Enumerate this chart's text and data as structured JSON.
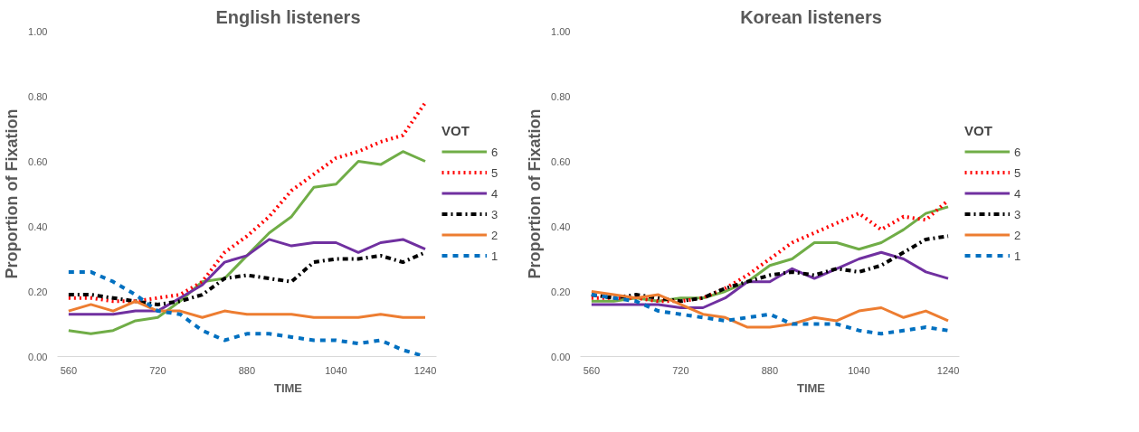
{
  "chart_data": [
    {
      "type": "line",
      "title": "English listeners",
      "xlabel": "TIME",
      "ylabel": "Proportion of Fixation",
      "legend_title": "VOT",
      "legend": "right",
      "grid": false,
      "categories": [
        "560",
        null,
        null,
        null,
        "720",
        null,
        null,
        null,
        "880",
        null,
        null,
        null,
        "1040",
        null,
        null,
        null,
        "1240"
      ],
      "ylim": [
        0,
        1
      ],
      "yticks": [
        {
          "value": 0,
          "label": "0.00"
        },
        {
          "value": 0.2,
          "label": "0.20"
        },
        {
          "value": 0.4,
          "label": "0.40"
        },
        {
          "value": 0.6,
          "label": "0.60"
        },
        {
          "value": 0.8,
          "label": "0.80"
        },
        {
          "value": 1,
          "label": "1.00"
        }
      ],
      "series": [
        {
          "name": "6",
          "color": "#70ad47",
          "line_style": "solid",
          "values": [
            0.08,
            0.07,
            0.08,
            0.11,
            0.12,
            0.17,
            0.23,
            0.24,
            0.31,
            0.38,
            0.43,
            0.52,
            0.53,
            0.6,
            0.59,
            0.63,
            0.6
          ]
        },
        {
          "name": "5",
          "color": "#ff0000",
          "line_style": "dotted",
          "values": [
            0.18,
            0.18,
            0.17,
            0.17,
            0.18,
            0.19,
            0.23,
            0.32,
            0.37,
            0.43,
            0.51,
            0.56,
            0.61,
            0.63,
            0.66,
            0.68,
            0.78
          ]
        },
        {
          "name": "4",
          "color": "#7030a0",
          "line_style": "solid",
          "values": [
            0.13,
            0.13,
            0.13,
            0.14,
            0.14,
            0.18,
            0.22,
            0.29,
            0.31,
            0.36,
            0.34,
            0.35,
            0.35,
            0.32,
            0.35,
            0.36,
            0.33
          ]
        },
        {
          "name": "3",
          "color": "#000000",
          "line_style": "dashdot",
          "values": [
            0.19,
            0.19,
            0.18,
            0.17,
            0.16,
            0.17,
            0.19,
            0.24,
            0.25,
            0.24,
            0.23,
            0.29,
            0.3,
            0.3,
            0.31,
            0.29,
            0.32
          ]
        },
        {
          "name": "2",
          "color": "#ed7d31",
          "line_style": "solid",
          "values": [
            0.14,
            0.16,
            0.14,
            0.17,
            0.14,
            0.14,
            0.12,
            0.14,
            0.13,
            0.13,
            0.13,
            0.12,
            0.12,
            0.12,
            0.13,
            0.12,
            0.12
          ]
        },
        {
          "name": "1",
          "color": "#0070c0",
          "line_style": "dashed",
          "values": [
            0.26,
            0.26,
            0.23,
            0.19,
            0.14,
            0.13,
            0.08,
            0.05,
            0.07,
            0.07,
            0.06,
            0.05,
            0.05,
            0.04,
            0.05,
            0.02,
            0.0
          ]
        }
      ]
    },
    {
      "type": "line",
      "title": "Korean listeners",
      "xlabel": "TIME",
      "ylabel": "Proportion of Fixation",
      "legend_title": "VOT",
      "legend": "right",
      "grid": false,
      "categories": [
        "560",
        null,
        null,
        null,
        "720",
        null,
        null,
        null,
        "880",
        null,
        null,
        null,
        "1040",
        null,
        null,
        null,
        "1240"
      ],
      "ylim": [
        0,
        1
      ],
      "yticks": [
        {
          "value": 0,
          "label": "0.00"
        },
        {
          "value": 0.2,
          "label": "0.20"
        },
        {
          "value": 0.4,
          "label": "0.40"
        },
        {
          "value": 0.6,
          "label": "0.60"
        },
        {
          "value": 0.8,
          "label": "0.80"
        },
        {
          "value": 1,
          "label": "1.00"
        }
      ],
      "series": [
        {
          "name": "6",
          "color": "#70ad47",
          "line_style": "solid",
          "values": [
            0.17,
            0.17,
            0.18,
            0.17,
            0.18,
            0.18,
            0.2,
            0.23,
            0.28,
            0.3,
            0.35,
            0.35,
            0.33,
            0.35,
            0.39,
            0.44,
            0.46
          ]
        },
        {
          "name": "5",
          "color": "#ff0000",
          "line_style": "dotted",
          "values": [
            0.18,
            0.18,
            0.18,
            0.17,
            0.17,
            0.18,
            0.21,
            0.25,
            0.3,
            0.35,
            0.38,
            0.41,
            0.44,
            0.39,
            0.43,
            0.42,
            0.48
          ]
        },
        {
          "name": "4",
          "color": "#7030a0",
          "line_style": "solid",
          "values": [
            0.16,
            0.16,
            0.16,
            0.16,
            0.15,
            0.15,
            0.18,
            0.23,
            0.23,
            0.27,
            0.24,
            0.27,
            0.3,
            0.32,
            0.3,
            0.26,
            0.24
          ]
        },
        {
          "name": "3",
          "color": "#000000",
          "line_style": "dashdot",
          "values": [
            0.19,
            0.18,
            0.19,
            0.18,
            0.17,
            0.18,
            0.21,
            0.23,
            0.25,
            0.26,
            0.25,
            0.27,
            0.26,
            0.28,
            0.32,
            0.36,
            0.37
          ]
        },
        {
          "name": "2",
          "color": "#ed7d31",
          "line_style": "solid",
          "values": [
            0.2,
            0.19,
            0.18,
            0.19,
            0.16,
            0.13,
            0.12,
            0.09,
            0.09,
            0.1,
            0.12,
            0.11,
            0.14,
            0.15,
            0.12,
            0.14,
            0.11
          ]
        },
        {
          "name": "1",
          "color": "#0070c0",
          "line_style": "dashed",
          "values": [
            0.19,
            0.18,
            0.17,
            0.14,
            0.13,
            0.12,
            0.11,
            0.12,
            0.13,
            0.1,
            0.1,
            0.1,
            0.08,
            0.07,
            0.08,
            0.09,
            0.08
          ]
        }
      ]
    }
  ]
}
